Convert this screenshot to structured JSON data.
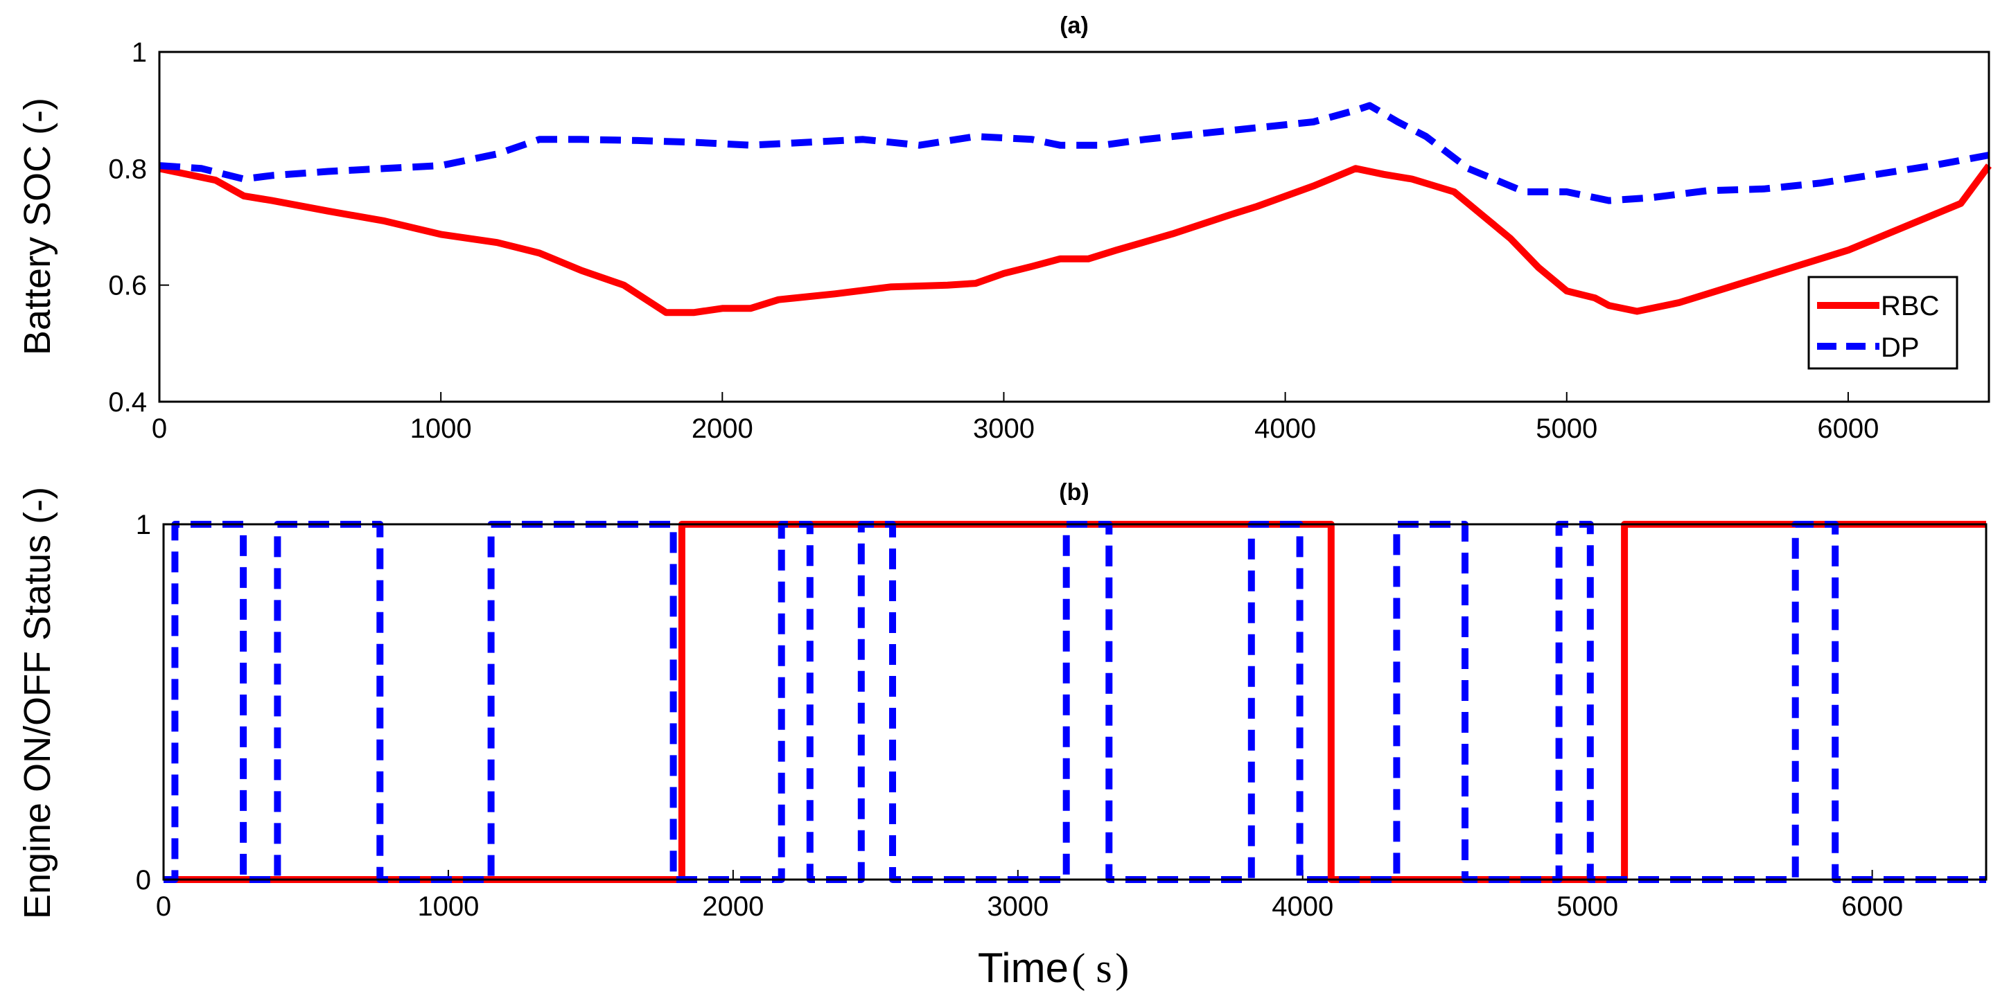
{
  "chart_data": [
    {
      "type": "line",
      "title": "(a)",
      "xlabel": "",
      "ylabel": "Battery SOC (-)",
      "xlim": [
        0,
        6500
      ],
      "ylim": [
        0.4,
        1
      ],
      "xticks": [
        0,
        1000,
        2000,
        3000,
        4000,
        5000,
        6000
      ],
      "xtick_labels": [
        "0",
        "1000",
        "2000",
        "3000",
        "4000",
        "5000",
        "6000"
      ],
      "yticks": [
        0.4,
        0.6,
        0.8,
        1
      ],
      "ytick_labels": [
        "0.4",
        "0.6",
        "0.8",
        "1"
      ],
      "legend_position": "bottom-right",
      "series": [
        {
          "name": "RBC",
          "color": "#ff0000",
          "style": "solid",
          "x": [
            0,
            200,
            300,
            400,
            600,
            800,
            1000,
            1200,
            1350,
            1500,
            1650,
            1800,
            1900,
            2000,
            2100,
            2200,
            2400,
            2600,
            2800,
            2900,
            3000,
            3100,
            3200,
            3300,
            3400,
            3600,
            3800,
            3900,
            4100,
            4250,
            4350,
            4450,
            4600,
            4700,
            4800,
            4900,
            5000,
            5100,
            5150,
            5250,
            5400,
            5600,
            5800,
            6000,
            6200,
            6400,
            6500
          ],
          "y": [
            0.8,
            0.78,
            0.753,
            0.745,
            0.727,
            0.71,
            0.687,
            0.673,
            0.655,
            0.625,
            0.6,
            0.553,
            0.553,
            0.56,
            0.56,
            0.575,
            0.585,
            0.597,
            0.6,
            0.603,
            0.62,
            0.632,
            0.645,
            0.645,
            0.66,
            0.688,
            0.72,
            0.735,
            0.77,
            0.8,
            0.79,
            0.782,
            0.76,
            0.72,
            0.68,
            0.63,
            0.59,
            0.578,
            0.565,
            0.555,
            0.57,
            0.6,
            0.63,
            0.66,
            0.7,
            0.74,
            0.805
          ]
        },
        {
          "name": "DP",
          "color": "#0000ff",
          "style": "dashed",
          "x": [
            0,
            150,
            300,
            400,
            600,
            800,
            1000,
            1200,
            1350,
            1500,
            1700,
            1900,
            2100,
            2300,
            2500,
            2700,
            2900,
            3100,
            3200,
            3350,
            3500,
            3700,
            3900,
            4100,
            4250,
            4300,
            4400,
            4500,
            4650,
            4850,
            5000,
            5150,
            5300,
            5500,
            5700,
            5900,
            6100,
            6300,
            6500
          ],
          "y": [
            0.805,
            0.8,
            0.782,
            0.788,
            0.795,
            0.8,
            0.805,
            0.825,
            0.85,
            0.85,
            0.848,
            0.845,
            0.84,
            0.845,
            0.85,
            0.84,
            0.855,
            0.85,
            0.84,
            0.84,
            0.85,
            0.86,
            0.87,
            0.88,
            0.9,
            0.908,
            0.88,
            0.855,
            0.8,
            0.76,
            0.76,
            0.745,
            0.75,
            0.762,
            0.765,
            0.775,
            0.79,
            0.805,
            0.823
          ]
        }
      ]
    },
    {
      "type": "line",
      "title": "(b)",
      "xlabel": "Time",
      "xunit": "s",
      "ylabel": "Engine ON/OFF Status (-)",
      "xlim": [
        0,
        6400
      ],
      "ylim": [
        0,
        1
      ],
      "xticks": [
        0,
        1000,
        2000,
        3000,
        4000,
        5000,
        6000
      ],
      "xtick_labels": [
        "0",
        "1000",
        "2000",
        "3000",
        "4000",
        "5000",
        "6000"
      ],
      "yticks": [
        0,
        1
      ],
      "ytick_labels": [
        "0",
        "1"
      ],
      "series": [
        {
          "name": "RBC",
          "color": "#ff0000",
          "style": "solid",
          "x": [
            0,
            1820,
            1820,
            4100,
            4100,
            5130,
            5130,
            6400
          ],
          "y": [
            0,
            0,
            1,
            1,
            0,
            0,
            1,
            1
          ]
        },
        {
          "name": "DP",
          "color": "#0000ff",
          "style": "dashed",
          "x": [
            0,
            40,
            40,
            280,
            280,
            400,
            400,
            760,
            760,
            1150,
            1150,
            1790,
            1790,
            2170,
            2170,
            2270,
            2270,
            2450,
            2450,
            2560,
            2560,
            3170,
            3170,
            3320,
            3320,
            3820,
            3820,
            3990,
            3990,
            4330,
            4330,
            4570,
            4570,
            4900,
            4900,
            5010,
            5010,
            5730,
            5730,
            5870,
            5870,
            6400
          ],
          "y": [
            0,
            0,
            1,
            1,
            0,
            0,
            1,
            1,
            0,
            0,
            1,
            1,
            0,
            0,
            1,
            1,
            0,
            0,
            1,
            1,
            0,
            0,
            1,
            1,
            0,
            0,
            1,
            1,
            0,
            0,
            1,
            1,
            0,
            0,
            1,
            1,
            0,
            0,
            1,
            1,
            0,
            0
          ]
        }
      ]
    }
  ]
}
